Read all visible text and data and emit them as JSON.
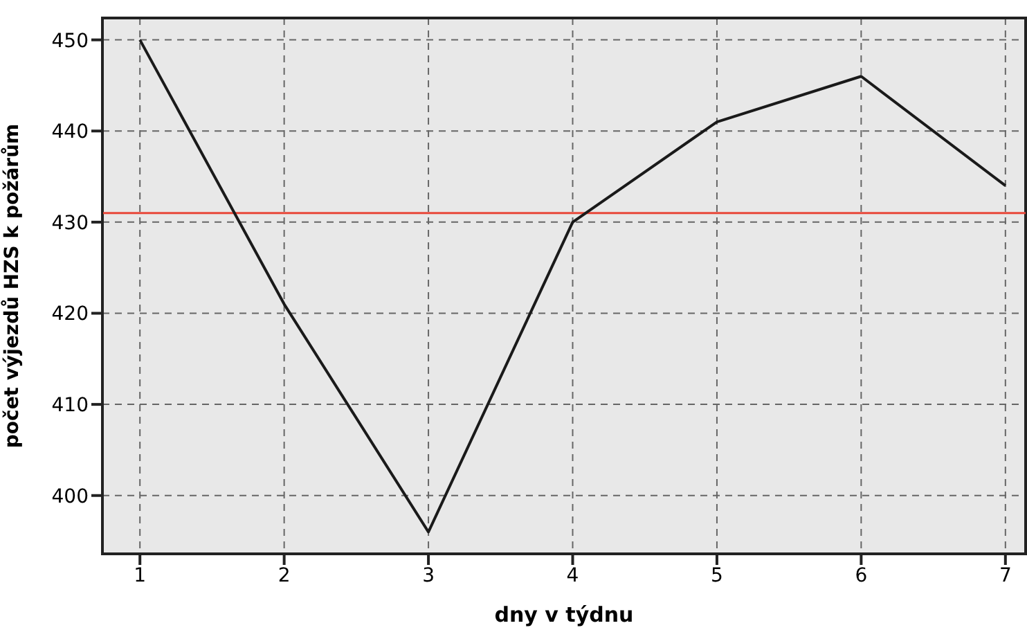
{
  "chart_data": {
    "type": "line",
    "xlabel": "dny v týdnu",
    "ylabel": "počet výjezdů HZS k požárům",
    "x": [
      1,
      2,
      3,
      4,
      5,
      6,
      7
    ],
    "series": [
      {
        "color": "#1a1a1a",
        "values": [
          450,
          421,
          396,
          430,
          441,
          446,
          434
        ]
      }
    ],
    "xlim": [
      0.74,
      7.14
    ],
    "xticks": [
      1,
      2,
      3,
      4,
      5,
      6,
      7
    ],
    "ylim": [
      393.6,
      452.4
    ],
    "yticks": [
      400,
      410,
      420,
      430,
      440,
      450
    ],
    "ref_lines": [
      {
        "axis": "y",
        "value": 431,
        "color": "#e8483a"
      }
    ],
    "grid": true,
    "marker": "none",
    "line_style": "solid"
  }
}
